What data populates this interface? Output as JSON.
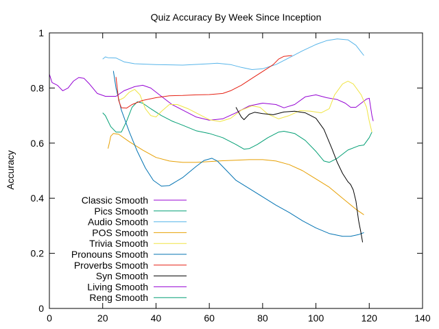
{
  "chart_data": {
    "type": "line",
    "title": "Quiz Accuracy By Week Since Inception",
    "xlabel": "",
    "ylabel": "Accuracy",
    "xlim": [
      0,
      140
    ],
    "ylim": [
      0,
      1
    ],
    "x_ticks": [
      0,
      20,
      40,
      60,
      80,
      100,
      120,
      140
    ],
    "y_ticks": [
      0,
      0.2,
      0.4,
      0.6,
      0.8,
      1
    ],
    "x_tick_labels": [
      "0",
      "20",
      "40",
      "60",
      "80",
      "100",
      "120",
      "140"
    ],
    "y_tick_labels": [
      "0",
      "0.2",
      "0.4",
      "0.6",
      "0.8",
      "1"
    ],
    "grid": false,
    "legend_position": "bottom-left",
    "series": [
      {
        "name": "Classic Smooth",
        "color": "#9400d3",
        "points": [
          [
            0,
            0.85
          ],
          [
            1,
            0.82
          ],
          [
            3,
            0.81
          ],
          [
            5,
            0.79
          ],
          [
            7,
            0.8
          ],
          [
            9,
            0.825
          ],
          [
            11,
            0.838
          ],
          [
            13,
            0.835
          ],
          [
            15,
            0.815
          ],
          [
            18,
            0.78
          ],
          [
            21,
            0.77
          ],
          [
            25,
            0.77
          ],
          [
            28,
            0.79
          ],
          [
            32,
            0.805
          ],
          [
            35,
            0.81
          ],
          [
            38,
            0.8
          ],
          [
            42,
            0.77
          ],
          [
            46,
            0.74
          ],
          [
            50,
            0.72
          ],
          [
            55,
            0.695
          ],
          [
            60,
            0.683
          ],
          [
            65,
            0.688
          ],
          [
            70,
            0.71
          ],
          [
            75,
            0.735
          ],
          [
            80,
            0.745
          ],
          [
            85,
            0.74
          ],
          [
            88,
            0.728
          ],
          [
            92,
            0.74
          ],
          [
            96,
            0.768
          ],
          [
            100,
            0.775
          ],
          [
            104,
            0.765
          ],
          [
            108,
            0.758
          ],
          [
            111,
            0.745
          ],
          [
            113,
            0.73
          ],
          [
            115,
            0.73
          ],
          [
            117,
            0.745
          ],
          [
            119,
            0.76
          ],
          [
            120,
            0.763
          ],
          [
            121,
            0.7
          ],
          [
            121.5,
            0.68
          ]
        ]
      },
      {
        "name": "Pics Smooth",
        "color": "#009e73",
        "points": [
          [
            20,
            0.71
          ],
          [
            21,
            0.7
          ],
          [
            23,
            0.66
          ],
          [
            25,
            0.64
          ],
          [
            27,
            0.64
          ],
          [
            29,
            0.68
          ],
          [
            31,
            0.73
          ],
          [
            33,
            0.75
          ],
          [
            35,
            0.745
          ],
          [
            38,
            0.725
          ],
          [
            42,
            0.7
          ],
          [
            46,
            0.68
          ],
          [
            50,
            0.665
          ],
          [
            55,
            0.645
          ],
          [
            60,
            0.635
          ],
          [
            65,
            0.62
          ],
          [
            70,
            0.595
          ],
          [
            73,
            0.578
          ],
          [
            75,
            0.58
          ],
          [
            78,
            0.595
          ],
          [
            82,
            0.62
          ],
          [
            86,
            0.64
          ],
          [
            88,
            0.643
          ],
          [
            92,
            0.635
          ],
          [
            96,
            0.61
          ],
          [
            100,
            0.57
          ],
          [
            103,
            0.535
          ],
          [
            105,
            0.53
          ],
          [
            108,
            0.545
          ],
          [
            112,
            0.575
          ],
          [
            116,
            0.59
          ],
          [
            118,
            0.593
          ],
          [
            120,
            0.62
          ],
          [
            121,
            0.64
          ]
        ]
      },
      {
        "name": "Audio Smooth",
        "color": "#56b4e9",
        "points": [
          [
            20,
            0.905
          ],
          [
            21,
            0.913
          ],
          [
            22,
            0.91
          ],
          [
            25,
            0.909
          ],
          [
            28,
            0.895
          ],
          [
            32,
            0.888
          ],
          [
            40,
            0.885
          ],
          [
            50,
            0.883
          ],
          [
            60,
            0.888
          ],
          [
            63,
            0.89
          ],
          [
            68,
            0.885
          ],
          [
            72,
            0.875
          ],
          [
            76,
            0.867
          ],
          [
            80,
            0.87
          ],
          [
            85,
            0.885
          ],
          [
            90,
            0.91
          ],
          [
            95,
            0.935
          ],
          [
            100,
            0.958
          ],
          [
            104,
            0.972
          ],
          [
            108,
            0.978
          ],
          [
            112,
            0.975
          ],
          [
            115,
            0.955
          ],
          [
            117,
            0.93
          ],
          [
            118,
            0.918
          ]
        ]
      },
      {
        "name": "POS Smooth",
        "color": "#e69f00",
        "points": [
          [
            22,
            0.58
          ],
          [
            22.5,
            0.6
          ],
          [
            23,
            0.625
          ],
          [
            24,
            0.635
          ],
          [
            26,
            0.632
          ],
          [
            30,
            0.605
          ],
          [
            35,
            0.575
          ],
          [
            40,
            0.548
          ],
          [
            45,
            0.535
          ],
          [
            50,
            0.53
          ],
          [
            55,
            0.53
          ],
          [
            60,
            0.533
          ],
          [
            65,
            0.536
          ],
          [
            70,
            0.538
          ],
          [
            75,
            0.54
          ],
          [
            80,
            0.54
          ],
          [
            85,
            0.535
          ],
          [
            90,
            0.522
          ],
          [
            95,
            0.5
          ],
          [
            100,
            0.47
          ],
          [
            105,
            0.44
          ],
          [
            110,
            0.4
          ],
          [
            115,
            0.36
          ],
          [
            118,
            0.34
          ]
        ]
      },
      {
        "name": "Trivia Smooth",
        "color": "#f0e442",
        "points": [
          [
            26,
            0.755
          ],
          [
            28,
            0.765
          ],
          [
            30,
            0.785
          ],
          [
            32,
            0.795
          ],
          [
            34,
            0.775
          ],
          [
            36,
            0.725
          ],
          [
            38,
            0.7
          ],
          [
            40,
            0.695
          ],
          [
            42,
            0.715
          ],
          [
            45,
            0.74
          ],
          [
            48,
            0.74
          ],
          [
            52,
            0.725
          ],
          [
            56,
            0.705
          ],
          [
            60,
            0.685
          ],
          [
            64,
            0.678
          ],
          [
            68,
            0.69
          ],
          [
            72,
            0.72
          ],
          [
            76,
            0.735
          ],
          [
            79,
            0.73
          ],
          [
            82,
            0.705
          ],
          [
            86,
            0.688
          ],
          [
            90,
            0.7
          ],
          [
            94,
            0.718
          ],
          [
            98,
            0.716
          ],
          [
            102,
            0.71
          ],
          [
            105,
            0.725
          ],
          [
            107,
            0.775
          ],
          [
            110,
            0.815
          ],
          [
            112,
            0.825
          ],
          [
            114,
            0.815
          ],
          [
            117,
            0.775
          ],
          [
            119,
            0.73
          ],
          [
            120,
            0.68
          ],
          [
            121,
            0.64
          ]
        ]
      },
      {
        "name": "Pronouns Smooth",
        "color": "#0072b2",
        "points": [
          [
            24,
            0.862
          ],
          [
            25,
            0.8
          ],
          [
            27,
            0.72
          ],
          [
            30,
            0.64
          ],
          [
            33,
            0.57
          ],
          [
            36,
            0.51
          ],
          [
            39,
            0.465
          ],
          [
            42,
            0.444
          ],
          [
            45,
            0.446
          ],
          [
            50,
            0.475
          ],
          [
            55,
            0.515
          ],
          [
            58,
            0.537
          ],
          [
            61,
            0.545
          ],
          [
            63,
            0.535
          ],
          [
            66,
            0.505
          ],
          [
            70,
            0.465
          ],
          [
            75,
            0.435
          ],
          [
            80,
            0.405
          ],
          [
            85,
            0.375
          ],
          [
            90,
            0.348
          ],
          [
            95,
            0.318
          ],
          [
            100,
            0.292
          ],
          [
            105,
            0.272
          ],
          [
            110,
            0.262
          ],
          [
            113,
            0.262
          ],
          [
            116,
            0.268
          ],
          [
            118,
            0.275
          ]
        ]
      },
      {
        "name": "Proverbs Smooth",
        "color": "#e51e10",
        "points": [
          [
            25,
            0.84
          ],
          [
            26,
            0.755
          ],
          [
            27,
            0.728
          ],
          [
            29,
            0.727
          ],
          [
            31,
            0.74
          ],
          [
            35,
            0.755
          ],
          [
            40,
            0.765
          ],
          [
            45,
            0.772
          ],
          [
            50,
            0.773
          ],
          [
            55,
            0.775
          ],
          [
            60,
            0.776
          ],
          [
            65,
            0.78
          ],
          [
            68,
            0.79
          ],
          [
            72,
            0.81
          ],
          [
            76,
            0.835
          ],
          [
            80,
            0.86
          ],
          [
            84,
            0.885
          ],
          [
            86,
            0.905
          ],
          [
            88,
            0.915
          ],
          [
            91,
            0.918
          ]
        ]
      },
      {
        "name": "Syn Smooth",
        "color": "#000000",
        "points": [
          [
            70,
            0.73
          ],
          [
            71,
            0.712
          ],
          [
            72,
            0.695
          ],
          [
            73,
            0.685
          ],
          [
            74,
            0.695
          ],
          [
            75,
            0.705
          ],
          [
            77,
            0.712
          ],
          [
            80,
            0.707
          ],
          [
            84,
            0.703
          ],
          [
            88,
            0.713
          ],
          [
            92,
            0.716
          ],
          [
            96,
            0.71
          ],
          [
            100,
            0.69
          ],
          [
            103,
            0.65
          ],
          [
            106,
            0.58
          ],
          [
            108,
            0.53
          ],
          [
            110,
            0.49
          ],
          [
            112,
            0.46
          ],
          [
            113,
            0.45
          ],
          [
            114,
            0.43
          ],
          [
            115,
            0.39
          ],
          [
            116,
            0.32
          ],
          [
            117,
            0.27
          ],
          [
            117.5,
            0.24
          ]
        ]
      },
      {
        "name": "Living Smooth",
        "color": "#9400d3",
        "points": []
      },
      {
        "name": "Reng Smooth",
        "color": "#009e73",
        "points": []
      }
    ]
  }
}
